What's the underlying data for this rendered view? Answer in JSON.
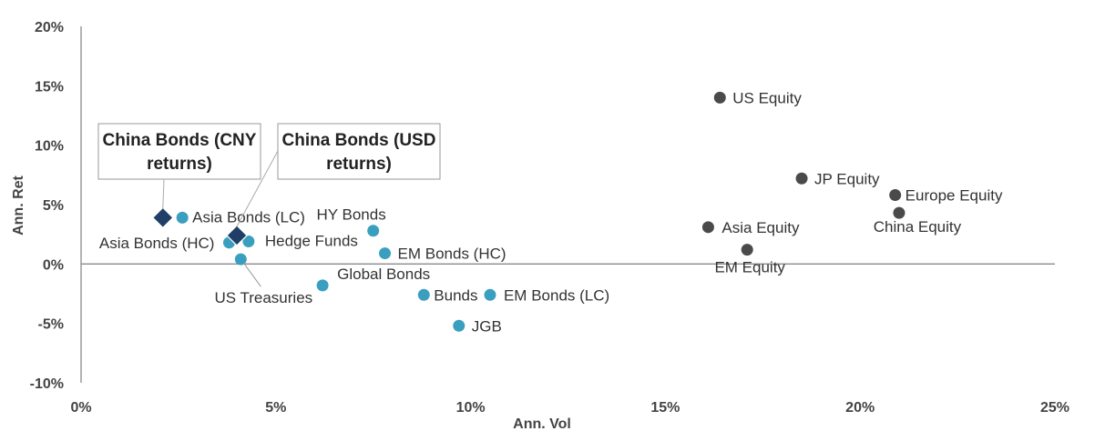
{
  "chart_data": {
    "type": "scatter",
    "xlabel": "Ann. Vol",
    "ylabel": "Ann. Ret",
    "xlim": [
      0,
      25
    ],
    "ylim": [
      -10,
      20
    ],
    "x_ticks": [
      "0%",
      "5%",
      "10%",
      "15%",
      "20%",
      "25%"
    ],
    "y_ticks": [
      "20%",
      "15%",
      "10%",
      "5%",
      "0%",
      "-5%",
      "-10%"
    ],
    "grid": false,
    "colors": {
      "bonds": "#3a9fbf",
      "equity": "#4a4a4a",
      "china_bonds": "#1f3f66"
    },
    "points": [
      {
        "name": "US Equity",
        "x": 16.4,
        "y": 14.0,
        "group": "equity"
      },
      {
        "name": "JP Equity",
        "x": 18.5,
        "y": 7.2,
        "group": "equity"
      },
      {
        "name": "Europe Equity",
        "x": 20.9,
        "y": 5.8,
        "group": "equity"
      },
      {
        "name": "China Equity",
        "x": 21.0,
        "y": 4.3,
        "group": "equity"
      },
      {
        "name": "Asia Equity",
        "x": 16.1,
        "y": 3.1,
        "group": "equity"
      },
      {
        "name": "EM Equity",
        "x": 17.1,
        "y": 1.2,
        "group": "equity"
      },
      {
        "name": "Asia Bonds (LC)",
        "x": 2.6,
        "y": 3.9,
        "group": "bonds"
      },
      {
        "name": "Asia Bonds (HC)",
        "x": 3.8,
        "y": 1.8,
        "group": "bonds"
      },
      {
        "name": "Hedge Funds",
        "x": 4.3,
        "y": 1.9,
        "group": "bonds"
      },
      {
        "name": "US Treasuries",
        "x": 4.1,
        "y": 0.4,
        "group": "bonds"
      },
      {
        "name": "HY Bonds",
        "x": 7.5,
        "y": 2.8,
        "group": "bonds"
      },
      {
        "name": "EM Bonds (HC)",
        "x": 7.8,
        "y": 0.9,
        "group": "bonds"
      },
      {
        "name": "Global Bonds",
        "x": 6.2,
        "y": -1.8,
        "group": "bonds"
      },
      {
        "name": "Bunds",
        "x": 8.8,
        "y": -2.6,
        "group": "bonds"
      },
      {
        "name": "EM Bonds (LC)",
        "x": 10.5,
        "y": -2.6,
        "group": "bonds"
      },
      {
        "name": "JGB",
        "x": 9.7,
        "y": -5.2,
        "group": "bonds"
      },
      {
        "name": "China Bonds (CNY returns)",
        "x": 2.1,
        "y": 3.9,
        "group": "china_bonds"
      },
      {
        "name": "China Bonds (USD returns)",
        "x": 4.0,
        "y": 2.4,
        "group": "china_bonds"
      }
    ],
    "callouts": [
      {
        "lines": [
          "China Bonds (CNY",
          "returns)"
        ]
      },
      {
        "lines": [
          "China Bonds (USD",
          "returns)"
        ]
      }
    ]
  }
}
